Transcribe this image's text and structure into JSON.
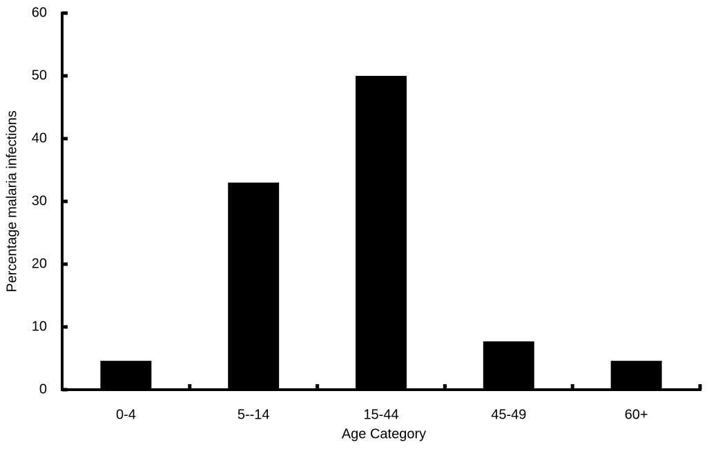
{
  "chart_data": {
    "type": "bar",
    "x_label": "Age Category",
    "y_label": "Percentage malaria infections",
    "categories": [
      "0-4",
      "5--14",
      "15-44",
      "45-49",
      "60+"
    ],
    "values": [
      4.6,
      33,
      50,
      7.7,
      4.6
    ],
    "color": "#000000",
    "ylim": [
      0,
      60
    ],
    "yticks": [
      0,
      10,
      20,
      30,
      40,
      50,
      60
    ],
    "grid": false
  }
}
